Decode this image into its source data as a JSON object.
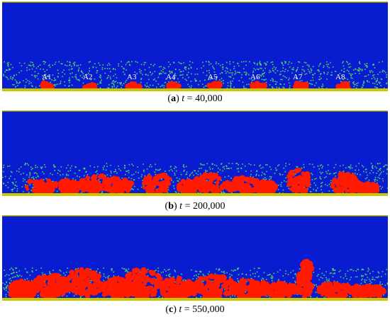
{
  "panels": [
    {
      "id": "a",
      "label": "a",
      "time_variable": "t",
      "time_value": "40,000",
      "site_labels": [
        "A1",
        "A2",
        "A3",
        "A4",
        "A5",
        "A6",
        "A7",
        "A8"
      ]
    },
    {
      "id": "b",
      "label": "b",
      "time_variable": "t",
      "time_value": "200,000"
    },
    {
      "id": "c",
      "label": "c",
      "time_variable": "t",
      "time_value": "550,000"
    }
  ],
  "colors": {
    "fluid": "#0a1ccf",
    "particles": "#4fd36a",
    "vapor": "#ff1a00",
    "wall": "#c8c800"
  }
}
